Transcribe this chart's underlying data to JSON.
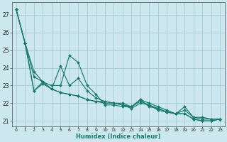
{
  "xlabel": "Humidex (Indice chaleur)",
  "background_color": "#cce8ee",
  "grid_color": "#aacfd8",
  "line_color": "#1a7a6e",
  "xlim": [
    -0.5,
    23.5
  ],
  "ylim": [
    20.7,
    27.7
  ],
  "yticks": [
    21,
    22,
    23,
    24,
    25,
    26,
    27
  ],
  "xticks": [
    0,
    1,
    2,
    3,
    4,
    5,
    6,
    7,
    8,
    9,
    10,
    11,
    12,
    13,
    14,
    15,
    16,
    17,
    18,
    19,
    20,
    21,
    22,
    23
  ],
  "lines": [
    [
      27.3,
      25.4,
      23.8,
      23.2,
      23.0,
      23.0,
      24.7,
      24.3,
      23.0,
      22.5,
      21.9,
      21.9,
      21.8,
      21.8,
      22.2,
      21.8,
      21.7,
      21.5,
      21.4,
      21.4,
      21.1,
      21.0,
      21.0,
      21.1
    ],
    [
      27.3,
      25.4,
      23.5,
      23.2,
      22.8,
      24.1,
      23.0,
      23.4,
      22.7,
      22.3,
      22.1,
      22.0,
      21.9,
      21.7,
      22.0,
      21.9,
      21.6,
      21.5,
      21.4,
      21.6,
      21.2,
      21.1,
      21.1,
      21.1
    ],
    [
      27.3,
      25.4,
      22.7,
      23.1,
      22.8,
      22.6,
      22.5,
      22.4,
      22.2,
      22.1,
      22.0,
      22.0,
      21.9,
      21.8,
      22.1,
      21.9,
      21.7,
      21.5,
      21.4,
      21.4,
      21.1,
      21.0,
      21.0,
      21.1
    ],
    [
      27.3,
      25.4,
      22.7,
      23.2,
      22.8,
      22.6,
      22.5,
      22.4,
      22.2,
      22.1,
      22.1,
      22.0,
      22.0,
      21.8,
      22.2,
      22.0,
      21.8,
      21.6,
      21.4,
      21.8,
      21.2,
      21.2,
      21.1,
      21.1
    ]
  ]
}
